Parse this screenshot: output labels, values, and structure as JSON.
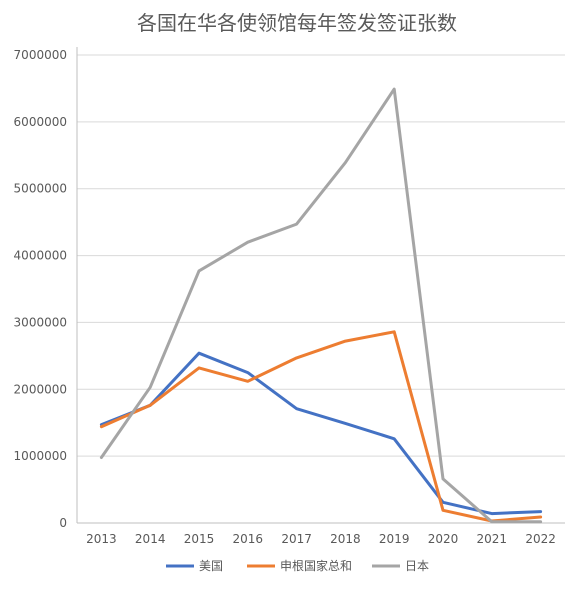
{
  "chart_data": {
    "type": "line",
    "title": "各国在华各使领馆每年签发签证张数",
    "x": [
      "2013",
      "2014",
      "2015",
      "2016",
      "2017",
      "2018",
      "2019",
      "2020",
      "2021",
      "2022"
    ],
    "ylim": [
      0,
      7000000
    ],
    "yticks": [
      0,
      1000000,
      2000000,
      3000000,
      4000000,
      5000000,
      6000000,
      7000000
    ],
    "ytick_labels": [
      "0",
      "1000000",
      "2000000",
      "3000000",
      "4000000",
      "5000000",
      "6000000",
      "7000000"
    ],
    "grid": true,
    "legend_position": "bottom",
    "series": [
      {
        "name": "美国",
        "color": "#4472c4",
        "values": [
          1470000,
          1760000,
          2540000,
          2250000,
          1710000,
          1490000,
          1260000,
          310000,
          140000,
          170000
        ]
      },
      {
        "name": "申根国家总和",
        "color": "#ed7d31",
        "values": [
          1440000,
          1760000,
          2320000,
          2120000,
          2470000,
          2720000,
          2860000,
          190000,
          30000,
          90000
        ]
      },
      {
        "name": "日本",
        "color": "#a5a5a5",
        "values": [
          980000,
          2030000,
          3770000,
          4200000,
          4470000,
          5390000,
          6490000,
          660000,
          20000,
          20000
        ]
      }
    ]
  }
}
